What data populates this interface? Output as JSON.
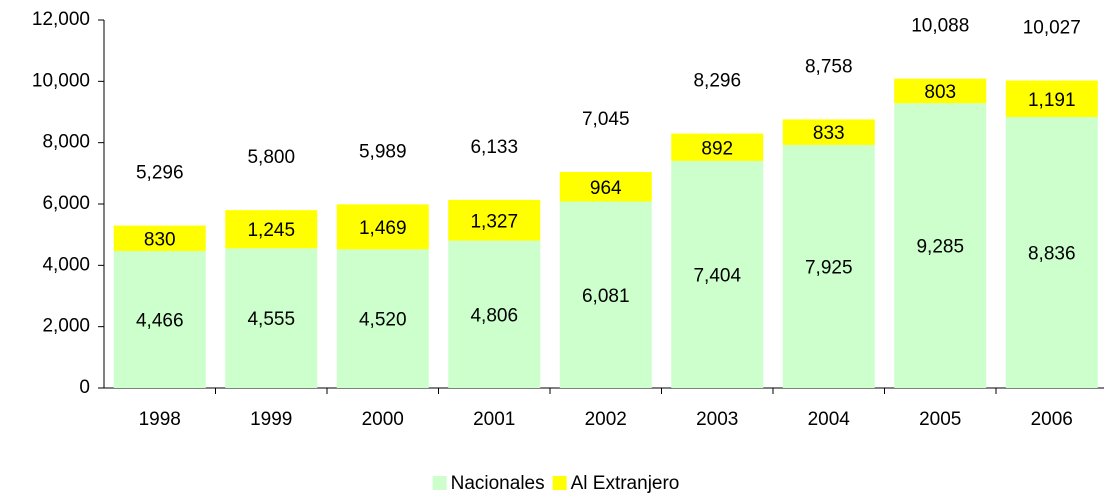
{
  "chart_data": {
    "type": "stacked_bar",
    "categories": [
      "1998",
      "1999",
      "2000",
      "2001",
      "2002",
      "2003",
      "2004",
      "2005",
      "2006"
    ],
    "series": [
      {
        "name": "Nacionales",
        "color": "#ccffcc",
        "values": [
          4466,
          4555,
          4520,
          4806,
          6081,
          7404,
          7925,
          9285,
          8836
        ],
        "value_labels": [
          "4,466",
          "4,555",
          "4,520",
          "4,806",
          "6,081",
          "7,404",
          "7,925",
          "9,285",
          "8,836"
        ]
      },
      {
        "name": "Al Extranjero",
        "color": "#ffff00",
        "values": [
          830,
          1245,
          1469,
          1327,
          964,
          892,
          833,
          803,
          1191
        ],
        "value_labels": [
          "830",
          "1,245",
          "1,469",
          "1,327",
          "964",
          "892",
          "833",
          "803",
          "1,191"
        ]
      }
    ],
    "totals": [
      5296,
      5800,
      5989,
      6133,
      7045,
      8296,
      8758,
      10088,
      10027
    ],
    "total_labels": [
      "5,296",
      "5,800",
      "5,989",
      "6,133",
      "7,045",
      "8,296",
      "8,758",
      "10,088",
      "10,027"
    ],
    "ylim": [
      0,
      12000
    ],
    "yticks": [
      0,
      {
        "value": 2000,
        "label": "2,000"
      },
      {
        "value": 4000,
        "label": "4,000"
      },
      {
        "value": 6000,
        "label": "6,000"
      },
      {
        "value": 8000,
        "label": "8,000"
      },
      {
        "value": 10000,
        "label": "10,000"
      },
      {
        "value": 12000,
        "label": "12,000"
      }
    ],
    "legend": "bottom"
  }
}
